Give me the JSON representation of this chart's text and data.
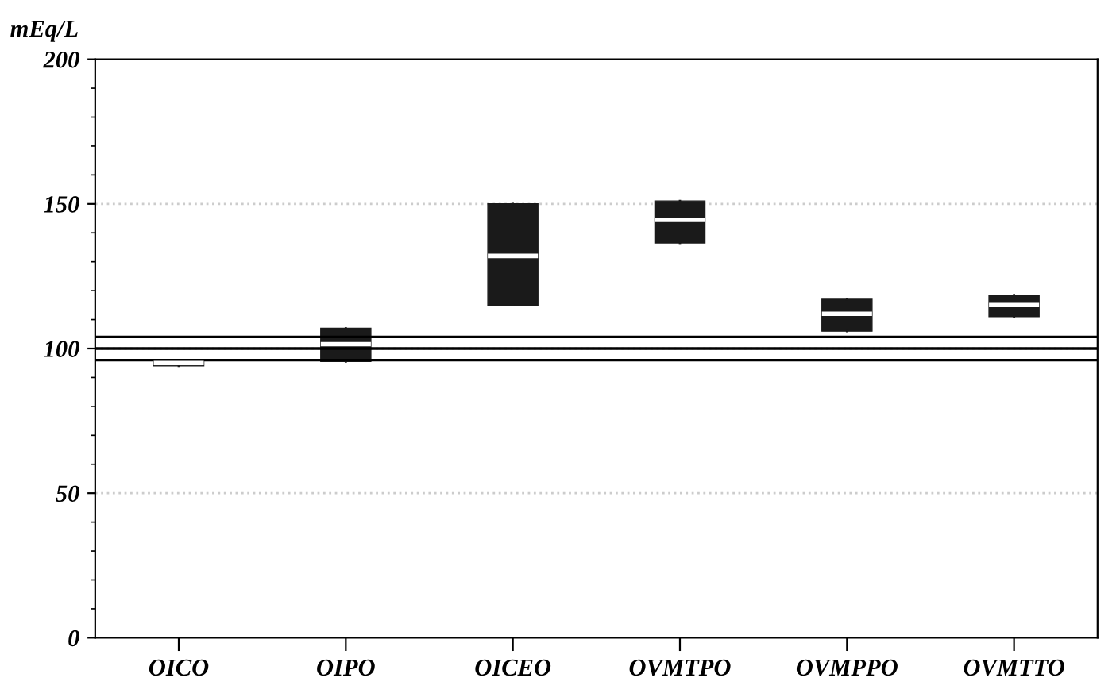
{
  "chart_data": {
    "type": "box",
    "ylabel": "mEq/L",
    "categories": [
      "OICO",
      "OIPO",
      "OICEO",
      "OVMTPO",
      "OVMPPO",
      "OVMTTO"
    ],
    "boxes": [
      {
        "low": 94,
        "q1": 94,
        "median": 95,
        "q3": 95.5,
        "high": 95.5
      },
      {
        "low": 95.5,
        "q1": 95.5,
        "median": 101.5,
        "q3": 107,
        "high": 107
      },
      {
        "low": 115,
        "q1": 115,
        "median": 132,
        "q3": 150,
        "high": 150
      },
      {
        "low": 136.5,
        "q1": 136.5,
        "median": 144.5,
        "q3": 151,
        "high": 151
      },
      {
        "low": 106,
        "q1": 106,
        "median": 112,
        "q3": 117,
        "high": 117
      },
      {
        "low": 111,
        "q1": 111,
        "median": 115,
        "q3": 118.5,
        "high": 118.5
      }
    ],
    "color": "#1a1a1a",
    "ylim": [
      0,
      200
    ],
    "yticks": [
      0,
      50,
      100,
      150,
      200
    ],
    "grid": "y",
    "ref_lines": [
      {
        "axis": "y",
        "value": 104,
        "color": "#000000"
      },
      {
        "axis": "y",
        "value": 100,
        "color": "#000000"
      },
      {
        "axis": "y",
        "value": 96,
        "color": "#000000"
      }
    ]
  }
}
